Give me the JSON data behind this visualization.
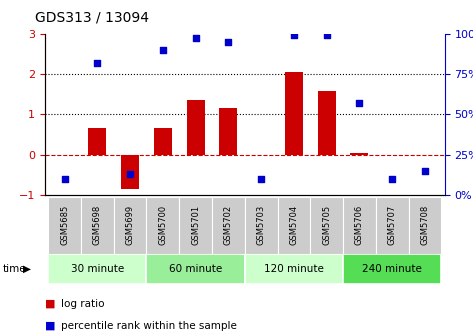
{
  "title": "GDS313 / 13094",
  "samples": [
    "GSM5685",
    "GSM5698",
    "GSM5699",
    "GSM5700",
    "GSM5701",
    "GSM5702",
    "GSM5703",
    "GSM5704",
    "GSM5705",
    "GSM5706",
    "GSM5707",
    "GSM5708"
  ],
  "log_ratio": [
    0.0,
    0.65,
    -0.85,
    0.65,
    1.35,
    1.15,
    -0.02,
    2.05,
    1.58,
    0.03,
    -0.02,
    -0.02
  ],
  "percentile_rank": [
    10,
    82,
    13,
    90,
    97,
    95,
    10,
    99,
    99,
    57,
    10,
    15
  ],
  "groups": [
    {
      "label": "30 minute",
      "start": 0,
      "end": 2,
      "color": "#ccffcc"
    },
    {
      "label": "60 minute",
      "start": 3,
      "end": 5,
      "color": "#99ee99"
    },
    {
      "label": "120 minute",
      "start": 6,
      "end": 8,
      "color": "#ccffcc"
    },
    {
      "label": "240 minute",
      "start": 9,
      "end": 11,
      "color": "#55dd55"
    }
  ],
  "bar_color": "#cc0000",
  "dot_color": "#0000cc",
  "ylim_left": [
    -1,
    3
  ],
  "ylim_right": [
    0,
    100
  ],
  "yticks_left": [
    -1,
    0,
    1,
    2,
    3
  ],
  "yticks_right": [
    0,
    25,
    50,
    75,
    100
  ],
  "left_axis_color": "#cc0000",
  "right_axis_color": "#0000cc",
  "grid_dotted_at": [
    1,
    2
  ],
  "zero_line_color": "#cc0000",
  "bg_color": "#ffffff",
  "tick_cell_color": "#cccccc",
  "group_colors": [
    "#ccffcc",
    "#99ee99",
    "#ccffcc",
    "#55dd55"
  ]
}
